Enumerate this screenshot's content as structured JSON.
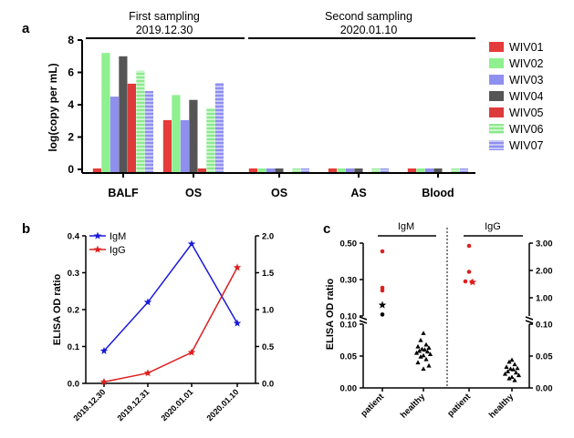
{
  "colors": {
    "WIV01": "#e63b3b",
    "WIV02": "#8ef08e",
    "WIV03": "#8f8fef",
    "WIV04": "#555555",
    "WIV05": "#dd3b3b",
    "WIV06": "#8ee88e",
    "WIV07": "#8f8fef",
    "IgM": "#1a1adb",
    "IgG": "#dd1f1f",
    "healthy": "#000000"
  },
  "chart_data": [
    {
      "id": "a",
      "panel_label": "a",
      "type": "bar",
      "ylabel": "log(copy per mL)",
      "ylim": [
        0,
        8
      ],
      "yticks": [
        "0",
        "2",
        "4",
        "6",
        "8"
      ],
      "ytick_values": [
        0,
        2,
        4,
        6,
        8
      ],
      "headers": [
        {
          "line1": "First sampling",
          "line2": "2019.12.30"
        },
        {
          "line1": "Second sampling",
          "line2": "2020.01.10"
        }
      ],
      "categories": [
        "BALF",
        "OS",
        "OS",
        "AS",
        "Blood"
      ],
      "legend": [
        "WIV01",
        "WIV02",
        "WIV03",
        "WIV04",
        "WIV05",
        "WIV06",
        "WIV07"
      ],
      "series": [
        {
          "name": "WIV01",
          "pattern": "solid",
          "values": [
            0,
            3.05,
            0,
            0,
            0
          ]
        },
        {
          "name": "WIV02",
          "pattern": "solid",
          "values": [
            7.2,
            4.6,
            0,
            0,
            0
          ]
        },
        {
          "name": "WIV03",
          "pattern": "solid",
          "values": [
            4.5,
            3.05,
            0,
            0,
            0
          ]
        },
        {
          "name": "WIV04",
          "pattern": "solid",
          "values": [
            7.0,
            4.3,
            0,
            0,
            0
          ]
        },
        {
          "name": "WIV05",
          "pattern": "solid",
          "values": [
            5.3,
            0,
            null,
            null,
            null
          ]
        },
        {
          "name": "WIV06",
          "pattern": "hstripe",
          "values": [
            6.1,
            3.8,
            0,
            0,
            0
          ]
        },
        {
          "name": "WIV07",
          "pattern": "hstripe",
          "values": [
            4.85,
            5.35,
            0,
            0,
            0
          ]
        }
      ]
    },
    {
      "id": "b",
      "panel_label": "b",
      "type": "line",
      "ylabel": "ELISA OD ratio",
      "categories": [
        "2019.12.30",
        "2019.12.31",
        "2020.01.01",
        "2020.01.10"
      ],
      "ylim_left": [
        0,
        0.4
      ],
      "yticks_left": [
        "0.0",
        "0.1",
        "0.2",
        "0.3",
        "0.4"
      ],
      "ytick_values_left": [
        0,
        0.1,
        0.2,
        0.3,
        0.4
      ],
      "ylim_right": [
        0,
        2.0
      ],
      "yticks_right": [
        "0.0",
        "0.5",
        "1.0",
        "1.5",
        "2.0"
      ],
      "ytick_values_right": [
        0,
        0.5,
        1.0,
        1.5,
        2.0
      ],
      "series": [
        {
          "name": "IgM",
          "axis": "left",
          "values": [
            0.088,
            0.22,
            0.378,
            0.163
          ]
        },
        {
          "name": "IgG",
          "axis": "right",
          "values": [
            0.02,
            0.14,
            0.42,
            1.57
          ]
        }
      ]
    },
    {
      "id": "c",
      "panel_label": "c",
      "type": "scatter",
      "ylabel": "ELISA OD ratio",
      "groups": [
        "IgM",
        "IgG"
      ],
      "categories": [
        "patient",
        "healthy",
        "patient",
        "healthy"
      ],
      "left_yticks_upper": [
        "0.50",
        "0.30",
        "0.10"
      ],
      "left_ytick_values_upper": [
        0.5,
        0.3,
        0.1
      ],
      "left_yticks_lower": [
        "0.10",
        "0.05",
        "0.00"
      ],
      "left_ytick_values_lower": [
        0.1,
        0.05,
        0.0
      ],
      "right_yticks_upper": [
        "3.00",
        "2.00",
        "1.00"
      ],
      "right_ytick_values_upper": [
        3.0,
        2.0,
        1.0
      ],
      "right_yticks_lower": [
        "0.10",
        "0.05",
        "0.00"
      ],
      "right_ytick_values_lower": [
        0.1,
        0.05,
        0.0
      ],
      "points": {
        "IgM_patient": [
          0.455,
          0.255,
          0.24,
          0.16,
          0.108
        ],
        "IgM_patient_marker_index": 3,
        "IgM_healthy": [
          0.086,
          0.075,
          0.068,
          0.065,
          0.063,
          0.061,
          0.06,
          0.058,
          0.057,
          0.055,
          0.053,
          0.051,
          0.049,
          0.045,
          0.04,
          0.035,
          0.03
        ],
        "IgG_patient": [
          2.9,
          1.95,
          1.6,
          1.58,
          1.57
        ],
        "IgG_patient_marker_index": 4,
        "IgG_healthy": [
          0.044,
          0.041,
          0.037,
          0.033,
          0.031,
          0.03,
          0.029,
          0.026,
          0.024,
          0.022,
          0.02,
          0.017,
          0.015,
          0.012
        ]
      }
    }
  ]
}
